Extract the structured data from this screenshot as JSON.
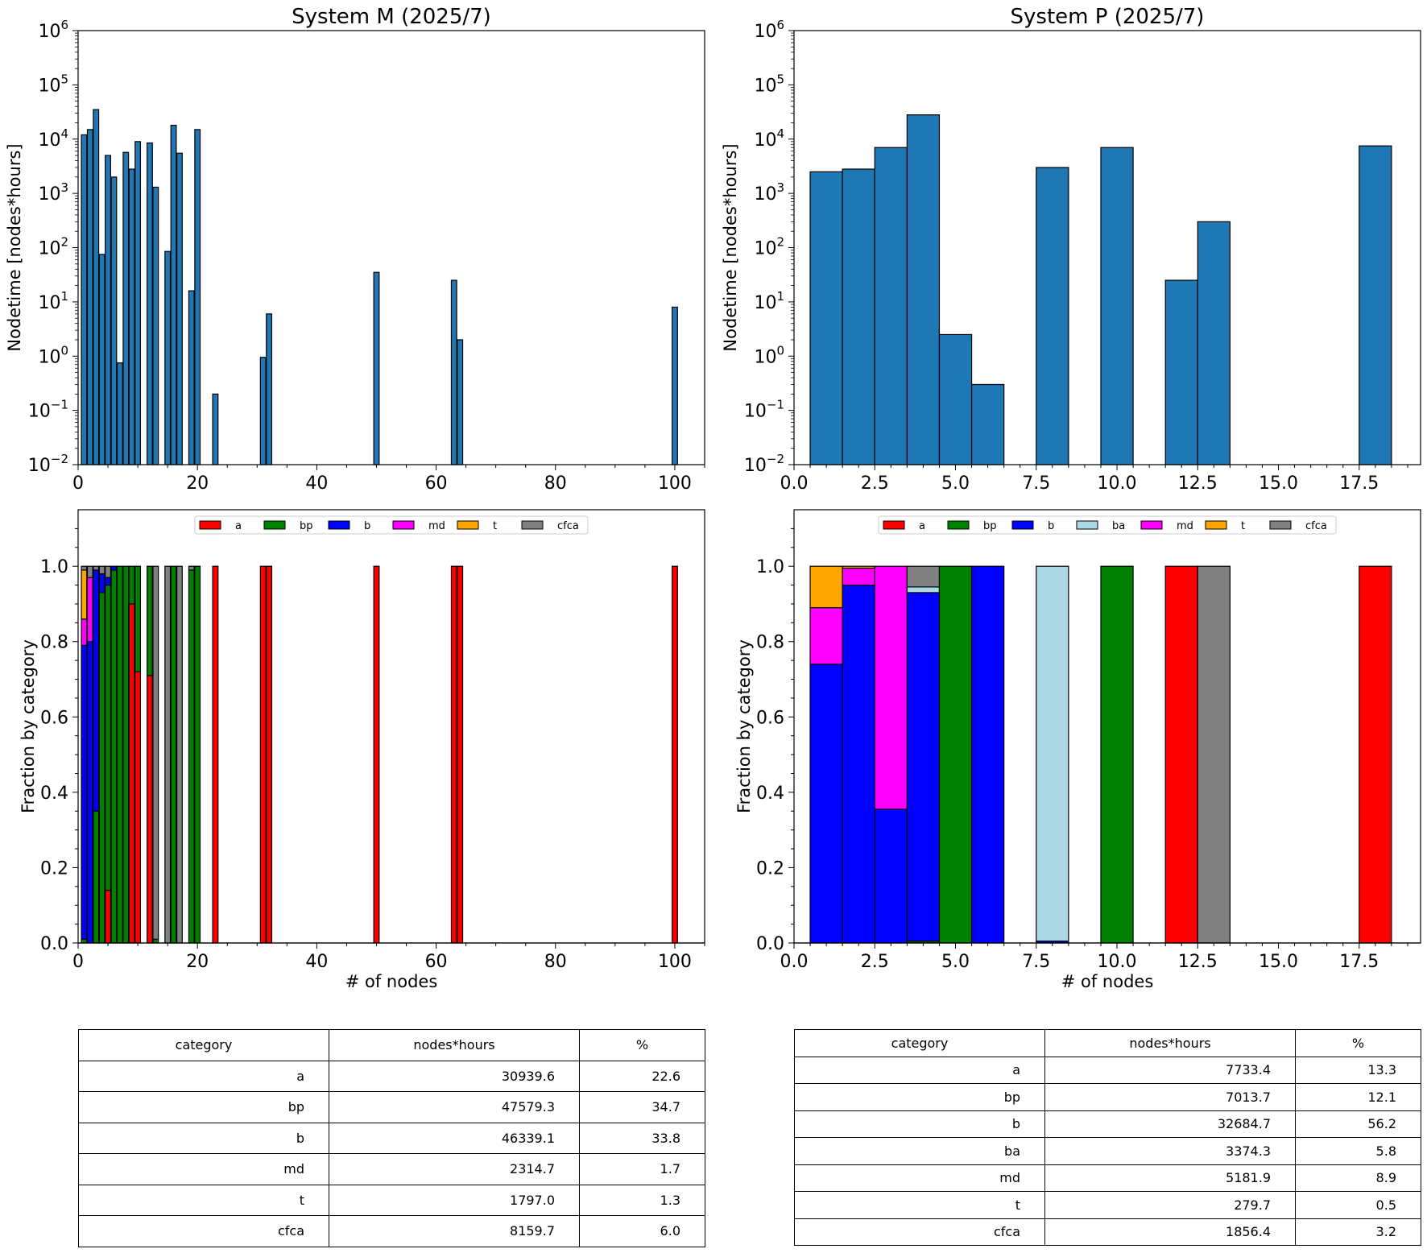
{
  "chart_data": [
    {
      "type": "bar",
      "title": "System M (2025/7)",
      "xlabel": "",
      "ylabel": "Nodetime [nodes*hours]",
      "yscale": "log",
      "ylim": [
        0.01,
        1000000
      ],
      "xlim": [
        0,
        105
      ],
      "xticks": [
        "0",
        "20",
        "40",
        "60",
        "80",
        "100"
      ],
      "yticks": [
        "10^-2",
        "10^-1",
        "10^0",
        "10^1",
        "10^2",
        "10^3",
        "10^4",
        "10^5",
        "10^6"
      ],
      "x": [
        1,
        2,
        3,
        4,
        5,
        6,
        7,
        8,
        9,
        10,
        12,
        13,
        15,
        16,
        17,
        19,
        20,
        23,
        31,
        32,
        50,
        63,
        64,
        100
      ],
      "values": [
        12000,
        15000,
        35000,
        75,
        5000,
        2000,
        0.75,
        5700,
        2800,
        9000,
        8500,
        1300,
        85,
        18000,
        5500,
        16,
        15000,
        0.2,
        0.95,
        6,
        35,
        25,
        2,
        8
      ]
    },
    {
      "type": "bar",
      "title": "System P (2025/7)",
      "xlabel": "",
      "ylabel": "Nodetime [nodes*hours]",
      "yscale": "log",
      "ylim": [
        0.01,
        1000000
      ],
      "xlim": [
        0,
        19.4
      ],
      "xticks": [
        "0.0",
        "2.5",
        "5.0",
        "7.5",
        "10.0",
        "12.5",
        "15.0",
        "17.5"
      ],
      "yticks": [
        "10^-2",
        "10^-1",
        "10^0",
        "10^1",
        "10^2",
        "10^3",
        "10^4",
        "10^5",
        "10^6"
      ],
      "x": [
        1,
        2,
        3,
        4,
        5,
        6,
        8,
        10,
        12,
        13,
        18
      ],
      "values": [
        2500,
        2800,
        7000,
        28000,
        2.5,
        0.3,
        3000,
        7000,
        25,
        300,
        7500
      ]
    },
    {
      "type": "stacked-bar",
      "title": "",
      "xlabel": "# of nodes",
      "ylabel": "Fraction by category",
      "ylim": [
        0,
        1.15
      ],
      "xlim": [
        0,
        105
      ],
      "xticks": [
        "0",
        "20",
        "40",
        "60",
        "80",
        "100"
      ],
      "yticks": [
        "0.0",
        "0.2",
        "0.4",
        "0.6",
        "0.8",
        "1.0"
      ],
      "legend": "top-center",
      "categories": [
        "a",
        "bp",
        "b",
        "md",
        "t",
        "cfca"
      ],
      "x": [
        1,
        2,
        3,
        4,
        5,
        6,
        7,
        8,
        9,
        10,
        12,
        13,
        15,
        16,
        17,
        19,
        20,
        23,
        31,
        32,
        50,
        63,
        64,
        100
      ],
      "series": [
        {
          "name": "a",
          "values": [
            0,
            0,
            0,
            0,
            0.14,
            0,
            0,
            0,
            0.9,
            0.72,
            0.71,
            0,
            0,
            0,
            0,
            0,
            0,
            1,
            1,
            1,
            1,
            1,
            1,
            1
          ]
        },
        {
          "name": "bp",
          "values": [
            0.01,
            0,
            0.35,
            0.93,
            0.81,
            0.99,
            1,
            1,
            0.1,
            0.28,
            0.29,
            0.01,
            0,
            1,
            0,
            0.99,
            1,
            0,
            0,
            0,
            0,
            0,
            0,
            0
          ]
        },
        {
          "name": "b",
          "values": [
            0.78,
            0.8,
            0.64,
            0.05,
            0.02,
            0.01,
            0,
            0,
            0,
            0,
            0,
            0,
            0,
            0,
            0,
            0,
            0,
            0,
            0,
            0,
            0,
            0,
            0,
            0
          ]
        },
        {
          "name": "md",
          "values": [
            0.07,
            0.17,
            0,
            0,
            0,
            0,
            0,
            0,
            0,
            0,
            0,
            0,
            0,
            0,
            0,
            0,
            0,
            0,
            0,
            0,
            0,
            0,
            0,
            0
          ]
        },
        {
          "name": "t",
          "values": [
            0.13,
            0,
            0,
            0,
            0,
            0,
            0,
            0,
            0,
            0,
            0,
            0,
            0,
            0,
            0,
            0,
            0,
            0,
            0,
            0,
            0,
            0,
            0,
            0
          ]
        },
        {
          "name": "cfca",
          "values": [
            0.01,
            0.03,
            0.01,
            0.02,
            0.03,
            0,
            0,
            0,
            0,
            0,
            0,
            0.99,
            1,
            0,
            1,
            0.01,
            0,
            0,
            0,
            0,
            0,
            0,
            0,
            0
          ]
        }
      ]
    },
    {
      "type": "stacked-bar",
      "title": "",
      "xlabel": "# of nodes",
      "ylabel": "Fraction by category",
      "ylim": [
        0,
        1.15
      ],
      "xlim": [
        0,
        19.4
      ],
      "xticks": [
        "0.0",
        "2.5",
        "5.0",
        "7.5",
        "10.0",
        "12.5",
        "15.0",
        "17.5"
      ],
      "yticks": [
        "0.0",
        "0.2",
        "0.4",
        "0.6",
        "0.8",
        "1.0"
      ],
      "legend": "top-center",
      "categories": [
        "a",
        "bp",
        "b",
        "ba",
        "md",
        "t",
        "cfca"
      ],
      "x": [
        1,
        2,
        3,
        4,
        5,
        6,
        8,
        10,
        12,
        13,
        18
      ],
      "series": [
        {
          "name": "a",
          "values": [
            0,
            0,
            0,
            0,
            0,
            0,
            0,
            0,
            1,
            0,
            1
          ]
        },
        {
          "name": "bp",
          "values": [
            0,
            0,
            0,
            0.005,
            1,
            0,
            0,
            1,
            0,
            0,
            0
          ]
        },
        {
          "name": "b",
          "values": [
            0.74,
            0.95,
            0.355,
            0.925,
            0,
            1,
            0.005,
            0,
            0,
            0,
            0
          ]
        },
        {
          "name": "ba",
          "values": [
            0,
            0,
            0,
            0.015,
            0,
            0,
            0.995,
            0,
            0,
            0,
            0
          ]
        },
        {
          "name": "md",
          "values": [
            0.15,
            0.045,
            0.645,
            0,
            0,
            0,
            0,
            0,
            0,
            0,
            0
          ]
        },
        {
          "name": "t",
          "values": [
            0.11,
            0.005,
            0,
            0,
            0,
            0,
            0,
            0,
            0,
            0,
            0
          ]
        },
        {
          "name": "cfca",
          "values": [
            0,
            0,
            0,
            0.055,
            0,
            0,
            0,
            0,
            0,
            1,
            0
          ]
        }
      ]
    }
  ],
  "colors": {
    "hist": "#1f77b4",
    "a": "#ff0000",
    "bp": "#008000",
    "b": "#0000ff",
    "ba": "#add8e6",
    "md": "#ff00ff",
    "t": "#ffa500",
    "cfca": "#808080"
  },
  "tables": {
    "left": {
      "headers": [
        "category",
        "nodes*hours",
        "%"
      ],
      "rows": [
        [
          "a",
          "30939.6",
          "22.6"
        ],
        [
          "bp",
          "47579.3",
          "34.7"
        ],
        [
          "b",
          "46339.1",
          "33.8"
        ],
        [
          "md",
          "2314.7",
          "1.7"
        ],
        [
          "t",
          "1797.0",
          "1.3"
        ],
        [
          "cfca",
          "8159.7",
          "6.0"
        ]
      ]
    },
    "right": {
      "headers": [
        "category",
        "nodes*hours",
        "%"
      ],
      "rows": [
        [
          "a",
          "7733.4",
          "13.3"
        ],
        [
          "bp",
          "7013.7",
          "12.1"
        ],
        [
          "b",
          "32684.7",
          "56.2"
        ],
        [
          "ba",
          "3374.3",
          "5.8"
        ],
        [
          "md",
          "5181.9",
          "8.9"
        ],
        [
          "t",
          "279.7",
          "0.5"
        ],
        [
          "cfca",
          "1856.4",
          "3.2"
        ]
      ]
    }
  }
}
